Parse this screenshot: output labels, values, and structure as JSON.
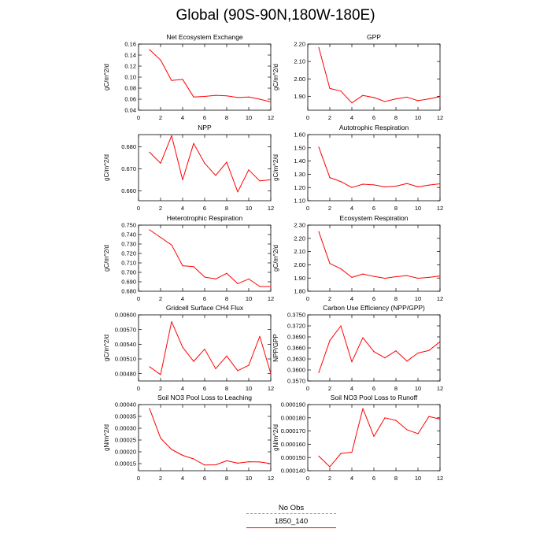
{
  "figure": {
    "title": "Global (90S-90N,180W-180E)"
  },
  "legend": {
    "items": [
      {
        "label": "No Obs",
        "color": "#8c8cf0",
        "style": "dashed"
      },
      {
        "label": "1850_140",
        "color": "#ff0000",
        "style": "solid"
      }
    ]
  },
  "chart_data": [
    {
      "type": "line",
      "title": "Net Ecosystem Exchange",
      "ylabel": "gC/m^2/d",
      "xlabel": "",
      "xlim": [
        0,
        12
      ],
      "xticks": [
        0,
        2,
        4,
        6,
        8,
        10,
        12
      ],
      "xtick_labels": [
        "0",
        "2",
        "4",
        "6",
        "8",
        "10",
        "12"
      ],
      "ylim": [
        0.04,
        0.16
      ],
      "yticks": [
        0.04,
        0.06,
        0.08,
        0.1,
        0.12,
        0.14,
        0.16
      ],
      "ytick_labels": [
        "0.04",
        "0.06",
        "0.08",
        "0.10",
        "0.12",
        "0.14",
        "0.16"
      ],
      "grid": false,
      "series": [
        {
          "name": "1850_140",
          "color": "#ff0000",
          "x": [
            1,
            2,
            3,
            4,
            5,
            6,
            7,
            8,
            9,
            10,
            11,
            12
          ],
          "values": [
            0.15,
            0.131,
            0.094,
            0.096,
            0.064,
            0.065,
            0.067,
            0.066,
            0.063,
            0.064,
            0.06,
            0.055
          ]
        }
      ]
    },
    {
      "type": "line",
      "title": "GPP",
      "ylabel": "gC/m^2/d",
      "xlabel": "",
      "xlim": [
        0,
        12
      ],
      "xticks": [
        0,
        2,
        4,
        6,
        8,
        10,
        12
      ],
      "xtick_labels": [
        "0",
        "2",
        "4",
        "6",
        "8",
        "10",
        "12"
      ],
      "ylim": [
        1.82,
        2.2
      ],
      "yticks": [
        1.9,
        2.0,
        2.1,
        2.2
      ],
      "ytick_labels": [
        "1.90",
        "2.00",
        "2.10",
        "2.20"
      ],
      "grid": false,
      "series": [
        {
          "name": "1850_140",
          "color": "#ff0000",
          "x": [
            1,
            2,
            3,
            4,
            5,
            6,
            7,
            8,
            9,
            10,
            11,
            12
          ],
          "values": [
            2.18,
            1.945,
            1.93,
            1.862,
            1.905,
            1.893,
            1.87,
            1.885,
            1.895,
            1.875,
            1.885,
            1.898
          ]
        }
      ]
    },
    {
      "type": "line",
      "title": "NPP",
      "ylabel": "gC/m^2/d",
      "xlabel": "",
      "xlim": [
        0,
        12
      ],
      "xticks": [
        0,
        2,
        4,
        6,
        8,
        10,
        12
      ],
      "xtick_labels": [
        "0",
        "2",
        "4",
        "6",
        "8",
        "10",
        "12"
      ],
      "ylim": [
        0.6555,
        0.6855
      ],
      "yticks": [
        0.66,
        0.67,
        0.68
      ],
      "ytick_labels": [
        "0.660",
        "0.670",
        "0.680"
      ],
      "grid": false,
      "series": [
        {
          "name": "1850_140",
          "color": "#ff0000",
          "x": [
            1,
            2,
            3,
            4,
            5,
            6,
            7,
            8,
            9,
            10,
            11,
            12
          ],
          "values": [
            0.6775,
            0.6725,
            0.685,
            0.665,
            0.6815,
            0.6725,
            0.667,
            0.673,
            0.6595,
            0.6695,
            0.6645,
            0.665
          ]
        }
      ]
    },
    {
      "type": "line",
      "title": "Autotrophic Respiration",
      "ylabel": "gC/m^2/d",
      "xlabel": "",
      "xlim": [
        0,
        12
      ],
      "xticks": [
        0,
        2,
        4,
        6,
        8,
        10,
        12
      ],
      "xtick_labels": [
        "0",
        "2",
        "4",
        "6",
        "8",
        "10",
        "12"
      ],
      "ylim": [
        1.1,
        1.6
      ],
      "yticks": [
        1.1,
        1.2,
        1.3,
        1.4,
        1.5,
        1.6
      ],
      "ytick_labels": [
        "1.10",
        "1.20",
        "1.30",
        "1.40",
        "1.50",
        "1.60"
      ],
      "grid": false,
      "series": [
        {
          "name": "1850_140",
          "color": "#ff0000",
          "x": [
            1,
            2,
            3,
            4,
            5,
            6,
            7,
            8,
            9,
            10,
            11,
            12
          ],
          "values": [
            1.505,
            1.275,
            1.245,
            1.2,
            1.225,
            1.22,
            1.205,
            1.21,
            1.23,
            1.205,
            1.218,
            1.228
          ]
        }
      ]
    },
    {
      "type": "line",
      "title": "Heterotrophic Respiration",
      "ylabel": "gC/m^2/d",
      "xlabel": "",
      "xlim": [
        0,
        12
      ],
      "xticks": [
        0,
        2,
        4,
        6,
        8,
        10,
        12
      ],
      "xtick_labels": [
        "0",
        "2",
        "4",
        "6",
        "8",
        "10",
        "12"
      ],
      "ylim": [
        0.68,
        0.75
      ],
      "yticks": [
        0.68,
        0.69,
        0.7,
        0.71,
        0.72,
        0.73,
        0.74,
        0.75
      ],
      "ytick_labels": [
        "0.680",
        "0.690",
        "0.700",
        "0.710",
        "0.720",
        "0.730",
        "0.740",
        "0.750"
      ],
      "grid": false,
      "series": [
        {
          "name": "1850_140",
          "color": "#ff0000",
          "x": [
            1,
            2,
            3,
            4,
            5,
            6,
            7,
            8,
            9,
            10,
            11,
            12
          ],
          "values": [
            0.745,
            0.737,
            0.729,
            0.707,
            0.706,
            0.695,
            0.693,
            0.699,
            0.688,
            0.693,
            0.685,
            0.685
          ]
        }
      ]
    },
    {
      "type": "line",
      "title": "Ecosystem Respiration",
      "ylabel": "gC/m^2/d",
      "xlabel": "",
      "xlim": [
        0,
        12
      ],
      "xticks": [
        0,
        2,
        4,
        6,
        8,
        10,
        12
      ],
      "xtick_labels": [
        "0",
        "2",
        "4",
        "6",
        "8",
        "10",
        "12"
      ],
      "ylim": [
        1.8,
        2.3
      ],
      "yticks": [
        1.8,
        1.9,
        2.0,
        2.1,
        2.2,
        2.3
      ],
      "ytick_labels": [
        "1.80",
        "1.90",
        "2.00",
        "2.10",
        "2.20",
        "2.30"
      ],
      "grid": false,
      "series": [
        {
          "name": "1850_140",
          "color": "#ff0000",
          "x": [
            1,
            2,
            3,
            4,
            5,
            6,
            7,
            8,
            9,
            10,
            11,
            12
          ],
          "values": [
            2.25,
            2.01,
            1.97,
            1.905,
            1.93,
            1.912,
            1.898,
            1.91,
            1.918,
            1.898,
            1.905,
            1.915
          ]
        }
      ]
    },
    {
      "type": "line",
      "title": "Gridcell Surface CH4 Flux",
      "ylabel": "gC/m^2/d",
      "xlabel": "",
      "xlim": [
        0,
        12
      ],
      "xticks": [
        0,
        2,
        4,
        6,
        8,
        10,
        12
      ],
      "xtick_labels": [
        "0",
        "2",
        "4",
        "6",
        "8",
        "10",
        "12"
      ],
      "ylim": [
        0.00465,
        0.006
      ],
      "yticks": [
        0.0048,
        0.0051,
        0.0054,
        0.0057,
        0.006
      ],
      "ytick_labels": [
        "0.00480",
        "0.00510",
        "0.00540",
        "0.00570",
        "0.00600"
      ],
      "grid": false,
      "series": [
        {
          "name": "1850_140",
          "color": "#ff0000",
          "x": [
            1,
            2,
            3,
            4,
            5,
            6,
            7,
            8,
            9,
            10,
            11,
            12
          ],
          "values": [
            0.00494,
            0.00478,
            0.00586,
            0.00534,
            0.00505,
            0.0053,
            0.0049,
            0.00516,
            0.00486,
            0.00497,
            0.00556,
            0.0048
          ]
        }
      ]
    },
    {
      "type": "line",
      "title": "Carbon Use Efficiency (NPP/GPP)",
      "ylabel": "NPP/GPP",
      "xlabel": "",
      "xlim": [
        0,
        12
      ],
      "xticks": [
        0,
        2,
        4,
        6,
        8,
        10,
        12
      ],
      "xtick_labels": [
        "0",
        "2",
        "4",
        "6",
        "8",
        "10",
        "12"
      ],
      "ylim": [
        0.357,
        0.375
      ],
      "yticks": [
        0.357,
        0.36,
        0.363,
        0.366,
        0.369,
        0.372,
        0.375
      ],
      "ytick_labels": [
        "0.3570",
        "0.3600",
        "0.3630",
        "0.3660",
        "0.3690",
        "0.3720",
        "0.3750"
      ],
      "grid": false,
      "series": [
        {
          "name": "1850_140",
          "color": "#ff0000",
          "x": [
            1,
            2,
            3,
            4,
            5,
            6,
            7,
            8,
            9,
            10,
            11,
            12
          ],
          "values": [
            0.3593,
            0.368,
            0.372,
            0.3622,
            0.3688,
            0.365,
            0.3633,
            0.3652,
            0.3624,
            0.3646,
            0.3653,
            0.3677
          ]
        }
      ]
    },
    {
      "type": "line",
      "title": "Soil NO3 Pool Loss to Leaching",
      "ylabel": "gN/m^2/d",
      "xlabel": "",
      "xlim": [
        0,
        12
      ],
      "xticks": [
        0,
        2,
        4,
        6,
        8,
        10,
        12
      ],
      "xtick_labels": [
        "0",
        "2",
        "4",
        "6",
        "8",
        "10",
        "12"
      ],
      "ylim": [
        0.00012,
        0.0004
      ],
      "yticks": [
        0.00015,
        0.0002,
        0.00025,
        0.0003,
        0.00035,
        0.0004
      ],
      "ytick_labels": [
        "0.00015",
        "0.00020",
        "0.00025",
        "0.00030",
        "0.00035",
        "0.00040"
      ],
      "grid": false,
      "series": [
        {
          "name": "1850_140",
          "color": "#ff0000",
          "x": [
            1,
            2,
            3,
            4,
            5,
            6,
            7,
            8,
            9,
            10,
            11,
            12
          ],
          "values": [
            0.000383,
            0.000258,
            0.00021,
            0.000185,
            0.00017,
            0.000144,
            0.000145,
            0.000162,
            0.000152,
            0.000158,
            0.000157,
            0.00015
          ]
        }
      ]
    },
    {
      "type": "line",
      "title": "Soil NO3 Pool Loss to Runoff",
      "ylabel": "gN/m^2/d",
      "xlabel": "",
      "xlim": [
        0,
        12
      ],
      "xticks": [
        0,
        2,
        4,
        6,
        8,
        10,
        12
      ],
      "xtick_labels": [
        "0",
        "2",
        "4",
        "6",
        "8",
        "10",
        "12"
      ],
      "ylim": [
        0.00014,
        0.00019
      ],
      "yticks": [
        0.00014,
        0.00015,
        0.00016,
        0.00017,
        0.00018,
        0.00019
      ],
      "ytick_labels": [
        "0.000140",
        "0.000150",
        "0.000160",
        "0.000170",
        "0.000180",
        "0.000190"
      ],
      "grid": false,
      "series": [
        {
          "name": "1850_140",
          "color": "#ff0000",
          "x": [
            1,
            2,
            3,
            4,
            5,
            6,
            7,
            8,
            9,
            10,
            11,
            12
          ],
          "values": [
            0.000151,
            0.000143,
            0.000153,
            0.000154,
            0.000187,
            0.000166,
            0.00018,
            0.000178,
            0.000171,
            0.000168,
            0.000181,
            0.000179
          ]
        }
      ]
    }
  ]
}
